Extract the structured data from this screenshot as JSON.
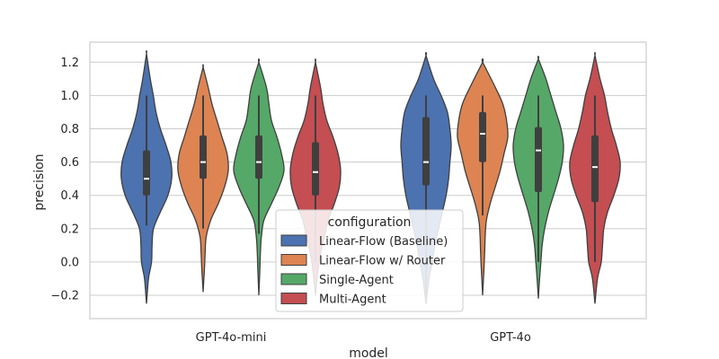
{
  "chart_data": {
    "type": "violin",
    "xlabel": "model",
    "ylabel": "precision",
    "ylim": [
      -0.34,
      1.32
    ],
    "yticks": [
      -0.2,
      0.0,
      0.2,
      0.4,
      0.6,
      0.8,
      1.0,
      1.2
    ],
    "ytick_labels": [
      "−0.2",
      "0.0",
      "0.2",
      "0.4",
      "0.6",
      "0.8",
      "1.0",
      "1.2"
    ],
    "categories": [
      "GPT-4o-mini",
      "GPT-4o"
    ],
    "grid": true,
    "legend": {
      "title": "configuration",
      "placement": "lower-center"
    },
    "series": [
      {
        "name": "Linear-Flow (Baseline)",
        "color": "#4c72b0",
        "stats": [
          {
            "min": -0.25,
            "max": 1.25,
            "whisker_low": 0.22,
            "whisker_high": 1.0,
            "q1": 0.4,
            "median": 0.5,
            "q3": 0.67,
            "profile": [
              [
                -0.25,
                0.0
              ],
              [
                -0.1,
                0.08
              ],
              [
                0.0,
                0.2
              ],
              [
                0.1,
                0.22
              ],
              [
                0.2,
                0.28
              ],
              [
                0.3,
                0.55
              ],
              [
                0.4,
                0.85
              ],
              [
                0.5,
                1.0
              ],
              [
                0.6,
                0.97
              ],
              [
                0.7,
                0.78
              ],
              [
                0.8,
                0.55
              ],
              [
                0.9,
                0.38
              ],
              [
                1.0,
                0.27
              ],
              [
                1.1,
                0.15
              ],
              [
                1.25,
                0.0
              ]
            ]
          },
          {
            "min": -0.25,
            "max": 1.24,
            "whisker_low": -0.25,
            "whisker_high": 1.0,
            "q1": 0.46,
            "median": 0.6,
            "q3": 0.87,
            "profile": [
              [
                -0.25,
                0.0
              ],
              [
                -0.1,
                0.12
              ],
              [
                0.0,
                0.25
              ],
              [
                0.1,
                0.35
              ],
              [
                0.2,
                0.5
              ],
              [
                0.3,
                0.65
              ],
              [
                0.4,
                0.8
              ],
              [
                0.5,
                0.9
              ],
              [
                0.6,
                0.95
              ],
              [
                0.7,
                1.0
              ],
              [
                0.8,
                0.95
              ],
              [
                0.9,
                0.85
              ],
              [
                1.0,
                0.6
              ],
              [
                1.1,
                0.3
              ],
              [
                1.24,
                0.0
              ]
            ]
          }
        ]
      },
      {
        "name": "Linear-Flow w/ Router",
        "color": "#dd8452",
        "stats": [
          {
            "min": -0.18,
            "max": 1.17,
            "whisker_low": 0.2,
            "whisker_high": 1.0,
            "q1": 0.5,
            "median": 0.6,
            "q3": 0.76,
            "profile": [
              [
                -0.18,
                0.0
              ],
              [
                -0.05,
                0.05
              ],
              [
                0.05,
                0.08
              ],
              [
                0.15,
                0.12
              ],
              [
                0.25,
                0.3
              ],
              [
                0.35,
                0.6
              ],
              [
                0.45,
                0.85
              ],
              [
                0.55,
                1.0
              ],
              [
                0.65,
                0.95
              ],
              [
                0.75,
                0.75
              ],
              [
                0.85,
                0.55
              ],
              [
                0.95,
                0.35
              ],
              [
                1.05,
                0.2
              ],
              [
                1.17,
                0.0
              ]
            ]
          },
          {
            "min": -0.2,
            "max": 1.2,
            "whisker_low": 0.28,
            "whisker_high": 1.0,
            "q1": 0.6,
            "median": 0.77,
            "q3": 0.9,
            "profile": [
              [
                -0.2,
                0.0
              ],
              [
                -0.05,
                0.05
              ],
              [
                0.05,
                0.08
              ],
              [
                0.15,
                0.1
              ],
              [
                0.25,
                0.15
              ],
              [
                0.35,
                0.3
              ],
              [
                0.45,
                0.5
              ],
              [
                0.55,
                0.7
              ],
              [
                0.65,
                0.85
              ],
              [
                0.75,
                1.0
              ],
              [
                0.85,
                0.95
              ],
              [
                0.95,
                0.8
              ],
              [
                1.05,
                0.5
              ],
              [
                1.2,
                0.0
              ]
            ]
          }
        ]
      },
      {
        "name": "Single-Agent",
        "color": "#55a868",
        "stats": [
          {
            "min": -0.2,
            "max": 1.2,
            "whisker_low": 0.17,
            "whisker_high": 1.0,
            "q1": 0.5,
            "median": 0.6,
            "q3": 0.76,
            "profile": [
              [
                -0.2,
                0.0
              ],
              [
                -0.05,
                0.04
              ],
              [
                0.05,
                0.06
              ],
              [
                0.15,
                0.1
              ],
              [
                0.25,
                0.2
              ],
              [
                0.35,
                0.5
              ],
              [
                0.45,
                0.8
              ],
              [
                0.55,
                1.0
              ],
              [
                0.65,
                0.9
              ],
              [
                0.75,
                0.72
              ],
              [
                0.85,
                0.5
              ],
              [
                0.95,
                0.4
              ],
              [
                1.05,
                0.3
              ],
              [
                1.2,
                0.0
              ]
            ]
          },
          {
            "min": -0.22,
            "max": 1.22,
            "whisker_low": 0.0,
            "whisker_high": 1.0,
            "q1": 0.42,
            "median": 0.67,
            "q3": 0.81,
            "profile": [
              [
                -0.22,
                0.0
              ],
              [
                -0.1,
                0.05
              ],
              [
                0.0,
                0.1
              ],
              [
                0.1,
                0.15
              ],
              [
                0.2,
                0.25
              ],
              [
                0.3,
                0.4
              ],
              [
                0.4,
                0.6
              ],
              [
                0.5,
                0.8
              ],
              [
                0.6,
                0.95
              ],
              [
                0.7,
                1.0
              ],
              [
                0.8,
                0.9
              ],
              [
                0.9,
                0.7
              ],
              [
                1.0,
                0.5
              ],
              [
                1.1,
                0.3
              ],
              [
                1.22,
                0.0
              ]
            ]
          }
        ]
      },
      {
        "name": "Multi-Agent",
        "color": "#c44e52",
        "stats": [
          {
            "min": -0.2,
            "max": 1.2,
            "whisker_low": 0.0,
            "whisker_high": 1.0,
            "q1": 0.4,
            "median": 0.54,
            "q3": 0.72,
            "profile": [
              [
                -0.2,
                0.0
              ],
              [
                -0.05,
                0.1
              ],
              [
                0.05,
                0.2
              ],
              [
                0.15,
                0.35
              ],
              [
                0.25,
                0.5
              ],
              [
                0.35,
                0.75
              ],
              [
                0.45,
                0.95
              ],
              [
                0.55,
                1.0
              ],
              [
                0.65,
                0.9
              ],
              [
                0.75,
                0.7
              ],
              [
                0.85,
                0.45
              ],
              [
                0.95,
                0.3
              ],
              [
                1.05,
                0.2
              ],
              [
                1.2,
                0.0
              ]
            ]
          },
          {
            "min": -0.25,
            "max": 1.24,
            "whisker_low": 0.0,
            "whisker_high": 1.0,
            "q1": 0.36,
            "median": 0.57,
            "q3": 0.76,
            "profile": [
              [
                -0.25,
                0.0
              ],
              [
                -0.1,
                0.1
              ],
              [
                0.0,
                0.25
              ],
              [
                0.1,
                0.3
              ],
              [
                0.2,
                0.35
              ],
              [
                0.3,
                0.5
              ],
              [
                0.4,
                0.75
              ],
              [
                0.5,
                0.95
              ],
              [
                0.6,
                1.0
              ],
              [
                0.7,
                0.85
              ],
              [
                0.8,
                0.65
              ],
              [
                0.9,
                0.5
              ],
              [
                1.0,
                0.38
              ],
              [
                1.1,
                0.2
              ],
              [
                1.24,
                0.0
              ]
            ]
          }
        ]
      }
    ]
  }
}
